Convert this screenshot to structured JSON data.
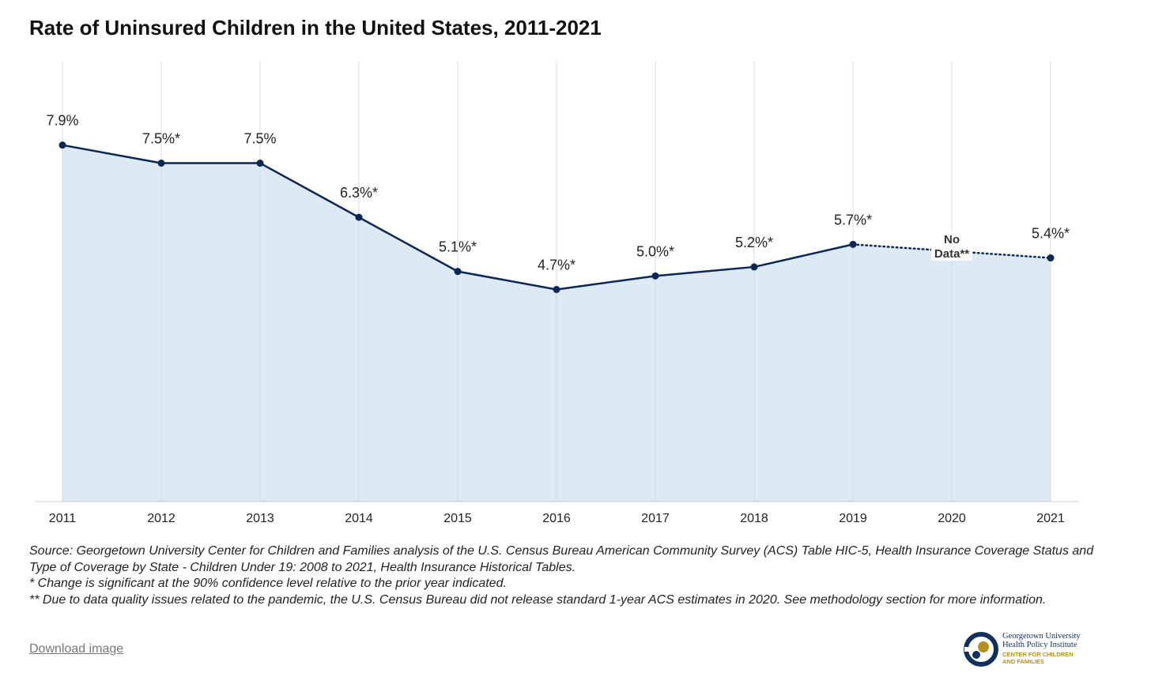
{
  "chart_data": {
    "type": "line",
    "title": "Rate of Uninsured Children in the United States, 2011-2021",
    "xlabel": "",
    "ylabel": "",
    "ylim": [
      0,
      9.75
    ],
    "categories": [
      "2011",
      "2012",
      "2013",
      "2014",
      "2015",
      "2016",
      "2017",
      "2018",
      "2019",
      "2020",
      "2021"
    ],
    "values": [
      7.9,
      7.5,
      7.5,
      6.3,
      5.1,
      4.7,
      5.0,
      5.2,
      5.7,
      null,
      5.4
    ],
    "data_labels": [
      "7.9%",
      "7.5%*",
      "7.5%",
      "6.3%*",
      "5.1%*",
      "4.7%*",
      "5.0%*",
      "5.2%*",
      "5.7%*",
      "",
      "5.4%*"
    ],
    "missing_label": {
      "line1": "No",
      "line2": "Data**"
    },
    "grid": "vertical",
    "colors": {
      "line": "#0a2756",
      "area": "#dde9f5",
      "grid": "#d5dbe2"
    }
  },
  "notes": [
    "Source: Georgetown University Center for Children and Families analysis of the U.S. Census Bureau American Community Survey (ACS) Table HIC-5, Health Insurance Coverage Status and Type of Coverage by State - Children Under 19: 2008 to 2021, Health Insurance Historical Tables.",
    "* Change is significant at the 90% confidence level relative to the prior year indicated.",
    "** Due to data quality issues related to the pandemic, the U.S. Census Bureau did not release standard 1-year ACS estimates in 2020. See methodology section for more information."
  ],
  "download_label": "Download image",
  "logo": {
    "line1": "Georgetown University",
    "line2": "Health Policy Institute",
    "line3": "CENTER FOR CHILDREN",
    "line4": "AND FAMILIES"
  }
}
